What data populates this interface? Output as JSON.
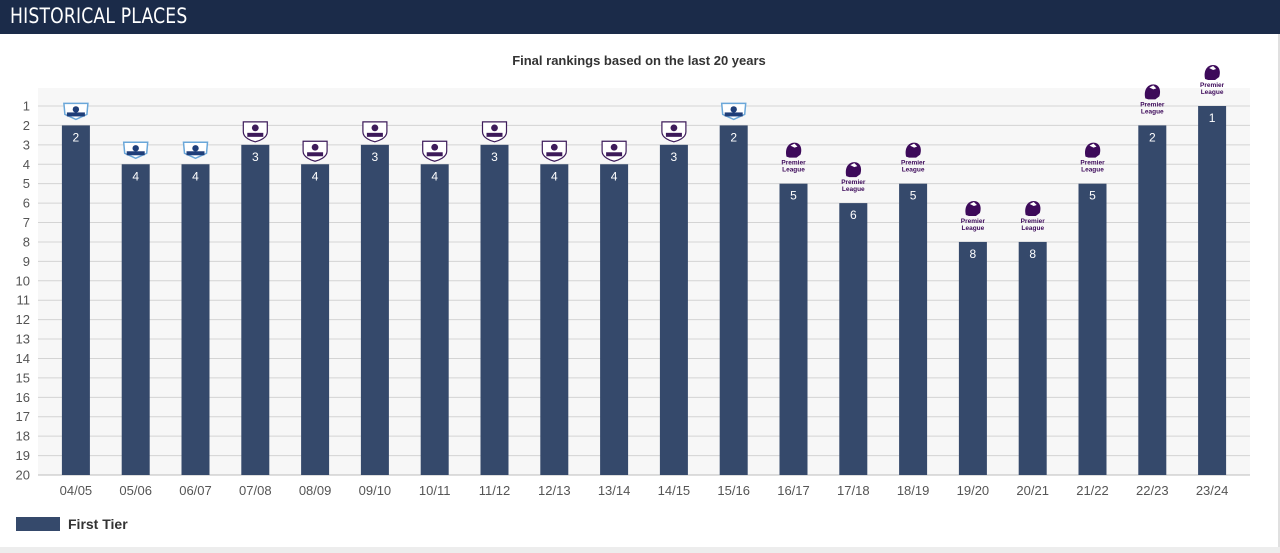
{
  "header": {
    "title": "HISTORICAL PLACES"
  },
  "colors": {
    "header_bg": "#1b2b49",
    "bar": "#35496b",
    "plot_bg": "#f7f7f7",
    "gridline": "#d4d4d4"
  },
  "legend": {
    "label": "First Tier"
  },
  "chart_data": {
    "type": "bar",
    "title": "Final rankings based on the last 20 years",
    "xlabel": "",
    "ylabel": "",
    "y_reversed": true,
    "ylim": [
      20,
      1
    ],
    "y_ticks": [
      1,
      2,
      3,
      4,
      5,
      6,
      7,
      8,
      9,
      10,
      11,
      12,
      13,
      14,
      15,
      16,
      17,
      18,
      19,
      20
    ],
    "grid": true,
    "legend_position": "bottom-left",
    "categories": [
      "04/05",
      "05/06",
      "06/07",
      "07/08",
      "08/09",
      "09/10",
      "10/11",
      "11/12",
      "12/13",
      "13/14",
      "14/15",
      "15/16",
      "16/17",
      "17/18",
      "18/19",
      "19/20",
      "20/21",
      "21/22",
      "22/23",
      "23/24"
    ],
    "series": [
      {
        "name": "First Tier",
        "values": [
          2,
          4,
          4,
          3,
          4,
          3,
          4,
          3,
          4,
          4,
          3,
          2,
          5,
          6,
          5,
          8,
          8,
          5,
          2,
          1
        ]
      }
    ],
    "logos": [
      "old-badge",
      "old-badge",
      "old-badge",
      "old-shield",
      "old-shield",
      "old-shield",
      "old-shield",
      "old-shield",
      "old-shield",
      "old-shield",
      "old-shield",
      "old-badge",
      "lion-crest",
      "lion-crest",
      "lion-crest",
      "lion-crest",
      "lion-crest",
      "lion-crest",
      "lion-crest",
      "lion-crest"
    ],
    "logo_texts": {
      "lion-crest": [
        "Premier",
        "League"
      ]
    }
  }
}
